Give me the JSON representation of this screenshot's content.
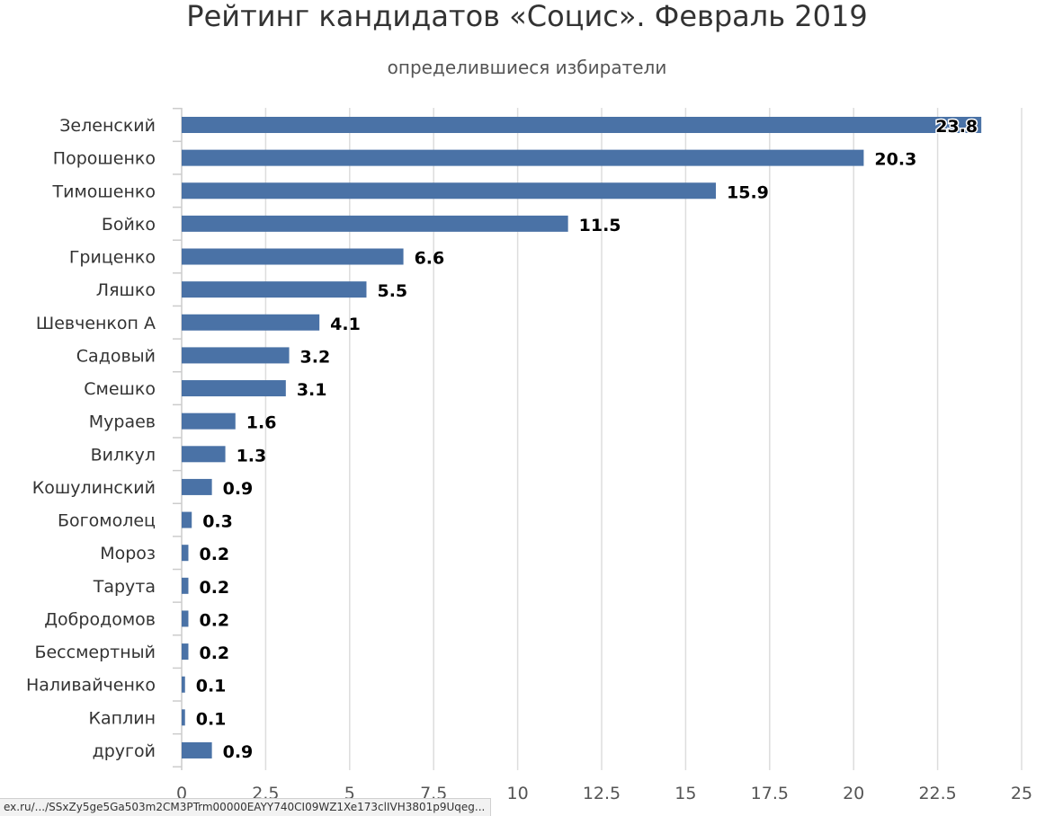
{
  "chart_data": {
    "type": "bar",
    "orientation": "horizontal",
    "title": "Рейтинг кандидатов «Социс». Февраль 2019",
    "subtitle": "определившиеся избиратели",
    "categories": [
      "Зеленский",
      "Порошенко",
      "Тимошенко",
      "Бойко",
      "Гриценко",
      "Ляшко",
      "Шевченкоп А",
      "Садовый",
      "Смешко",
      "Мураев",
      "Вилкул",
      "Кошулинский",
      "Богомолец",
      "Мороз",
      "Тарута",
      "Добродомов",
      "Бессмертный",
      "Наливайченко",
      "Каплин",
      "другой"
    ],
    "values": [
      23.8,
      20.3,
      15.9,
      11.5,
      6.6,
      5.5,
      4.1,
      3.2,
      3.1,
      1.6,
      1.3,
      0.9,
      0.3,
      0.2,
      0.2,
      0.2,
      0.2,
      0.1,
      0.1,
      0.9
    ],
    "data_labels": [
      "23.8",
      "20.3",
      "15.9",
      "11.5",
      "6.6",
      "5.5",
      "4.1",
      "3.2",
      "3.1",
      "1.6",
      "1.3",
      "0.9",
      "0.3",
      "0.2",
      "0.2",
      "0.2",
      "0.2",
      "0.1",
      "0.1",
      "0.9"
    ],
    "xlim": [
      0,
      25
    ],
    "xticks": [
      "0",
      "2.5",
      "5",
      "7.5",
      "10",
      "12.5",
      "15",
      "17.5",
      "20",
      "22.5",
      "25"
    ],
    "xlabel": "",
    "ylabel": "",
    "grid": "vertical",
    "legend": "none",
    "bar_color": "#4a72a6",
    "grid_color": "#dddddd"
  },
  "status_url": "ex.ru/.../SSxZy5ge5Ga503m2CM3PTrm00000EAYY740CI09WZ1Xe173clIVH3801p9Uqeg..."
}
